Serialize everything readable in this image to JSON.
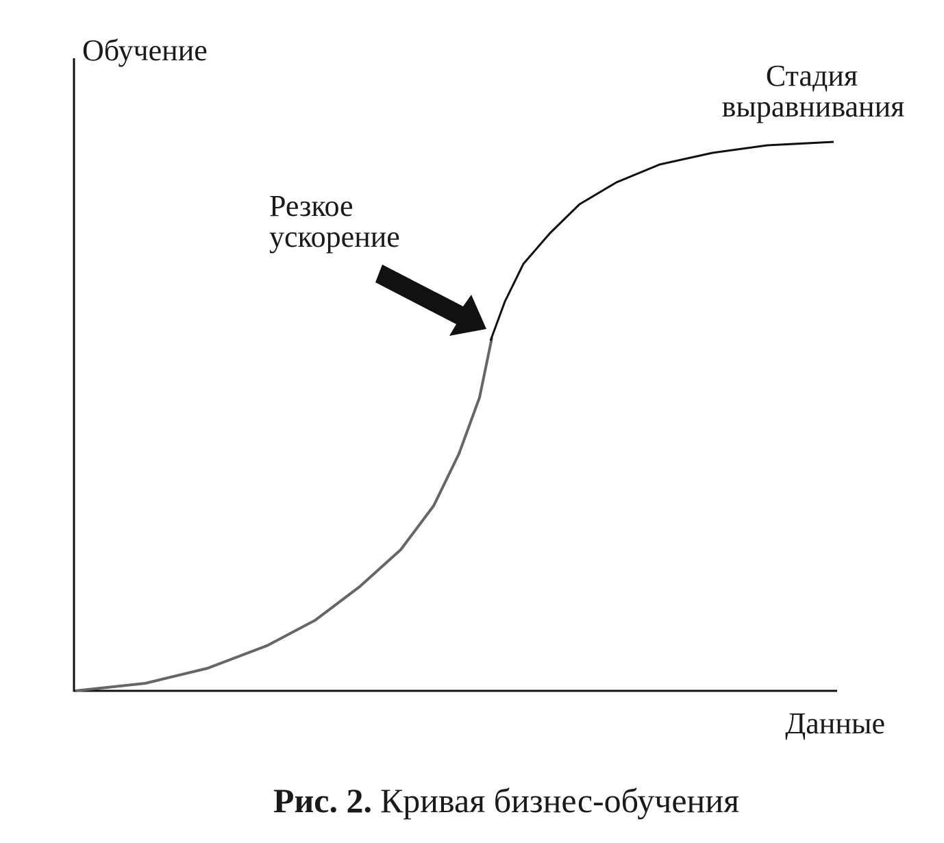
{
  "axes": {
    "y_label": "Обучение",
    "x_label": "Данные"
  },
  "annotations": [
    {
      "lines": [
        "Стадия",
        "выравнивания"
      ]
    },
    {
      "lines": [
        "Резкое",
        "ускорение"
      ]
    }
  ],
  "caption": {
    "number": "Рис. 2.",
    "text": "Кривая бизнес-обучения"
  }
}
